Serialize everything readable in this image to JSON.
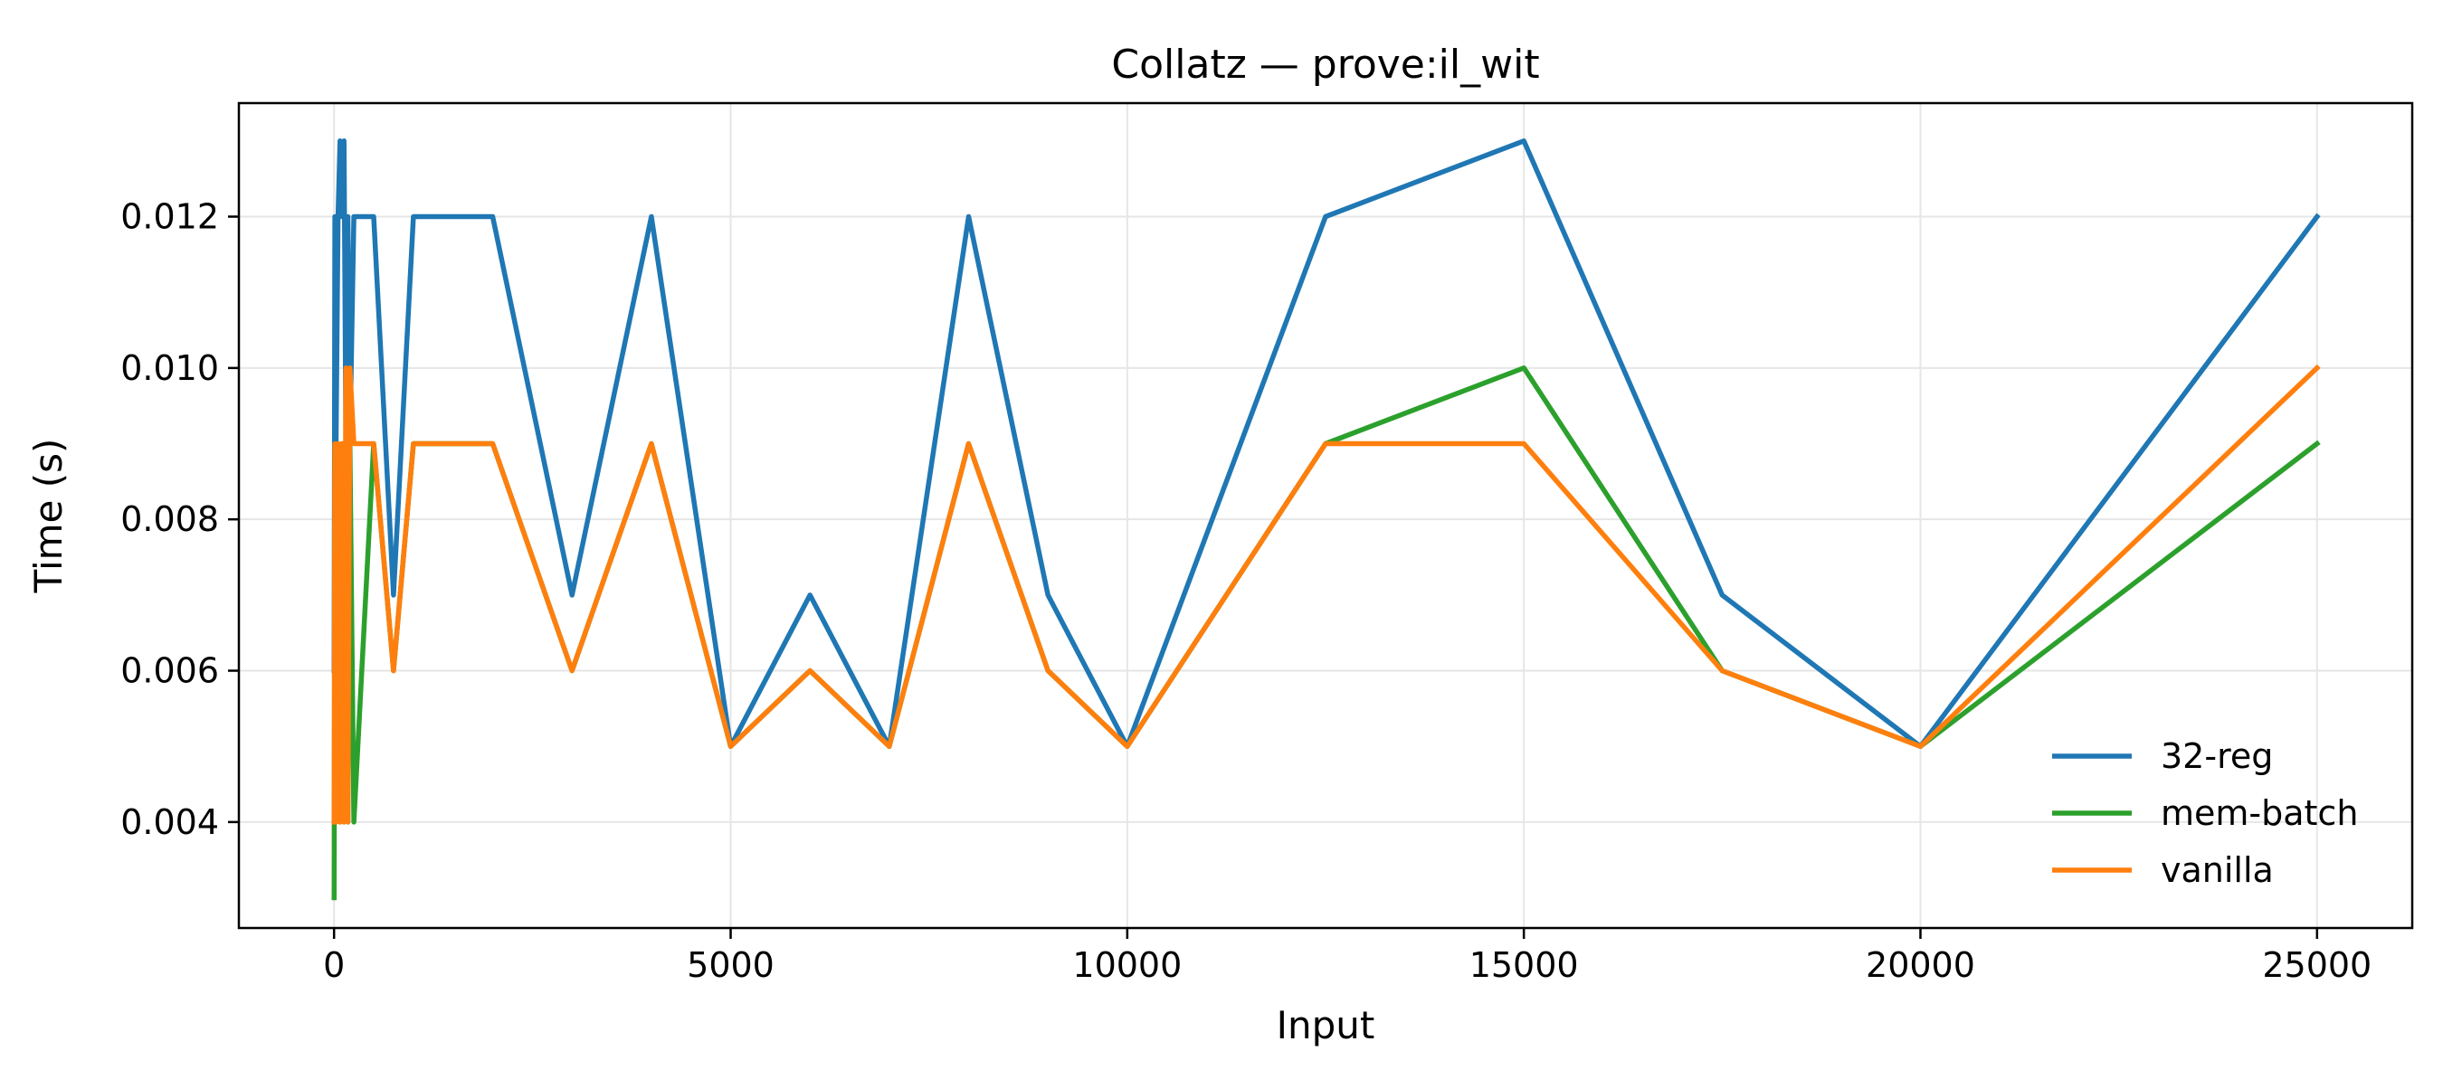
{
  "chart_data": {
    "type": "line",
    "title": "Collatz — prove:il_wit",
    "xlabel": "Input",
    "ylabel": "Time (s)",
    "xlim": [
      -1200,
      26200
    ],
    "ylim": [
      0.0026,
      0.0135
    ],
    "xticks": [
      0,
      5000,
      10000,
      15000,
      20000,
      25000
    ],
    "yticks": [
      0.004,
      0.006,
      0.008,
      0.01,
      0.012
    ],
    "xtick_labels": [
      "0",
      "5000",
      "10000",
      "15000",
      "20000",
      "25000"
    ],
    "ytick_labels": [
      "0.004",
      "0.006",
      "0.008",
      "0.010",
      "0.012"
    ],
    "grid": true,
    "legend_position": "lower right",
    "x": [
      1,
      10,
      25,
      50,
      75,
      100,
      125,
      150,
      175,
      200,
      250,
      500,
      750,
      1000,
      2000,
      3000,
      4000,
      5000,
      6000,
      7000,
      8000,
      9000,
      10000,
      12500,
      15000,
      17500,
      20000,
      25000
    ],
    "series": [
      {
        "name": "32-reg",
        "color": "#1f77b4",
        "values": [
          0.006,
          0.012,
          0.009,
          0.012,
          0.013,
          0.012,
          0.013,
          0.009,
          0.012,
          0.009,
          0.012,
          0.012,
          0.007,
          0.012,
          0.012,
          0.007,
          0.012,
          0.005,
          0.007,
          0.005,
          0.012,
          0.007,
          0.005,
          0.012,
          0.013,
          0.007,
          0.005,
          0.012
        ]
      },
      {
        "name": "mem-batch",
        "color": "#2ca02c",
        "values": [
          0.003,
          0.009,
          0.004,
          0.009,
          0.004,
          0.009,
          0.004,
          0.009,
          0.004,
          0.009,
          0.004,
          0.009,
          0.006,
          0.009,
          0.009,
          0.006,
          0.009,
          0.005,
          0.006,
          0.005,
          0.009,
          0.006,
          0.005,
          0.009,
          0.01,
          0.006,
          0.005,
          0.009
        ]
      },
      {
        "name": "vanilla",
        "color": "#ff7f0e",
        "values": [
          0.004,
          0.009,
          0.004,
          0.009,
          0.004,
          0.009,
          0.004,
          0.01,
          0.004,
          0.01,
          0.009,
          0.009,
          0.006,
          0.009,
          0.009,
          0.006,
          0.009,
          0.005,
          0.006,
          0.005,
          0.009,
          0.006,
          0.005,
          0.009,
          0.009,
          0.006,
          0.005,
          0.01
        ]
      }
    ]
  }
}
